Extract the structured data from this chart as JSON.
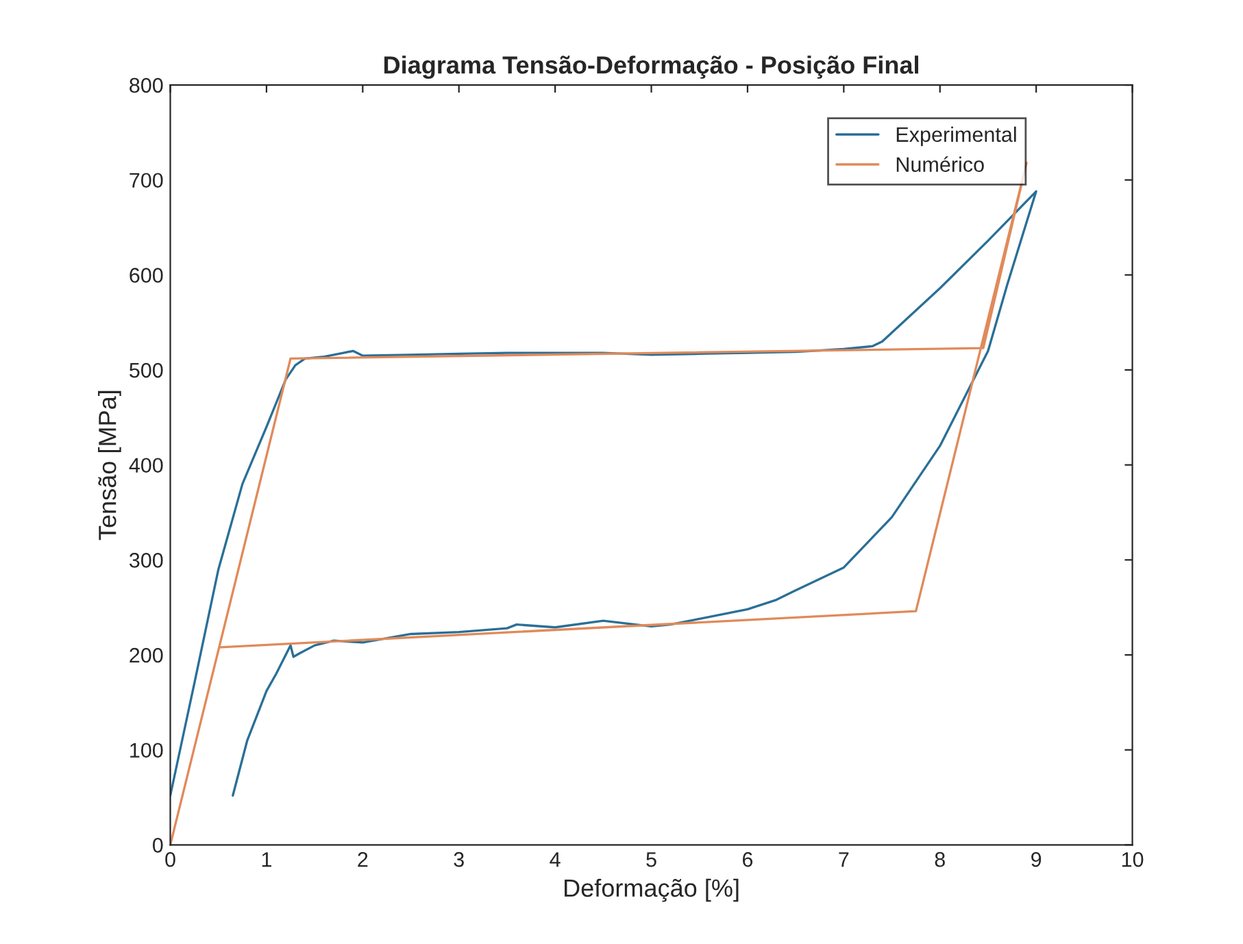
{
  "chart_data": {
    "type": "line",
    "title": "Diagrama Tensão-Deformação - Posição Final",
    "xlabel": "Deformação [%]",
    "ylabel": "Tensão [MPa]",
    "xlim": [
      0,
      10
    ],
    "ylim": [
      0,
      800
    ],
    "xticks": [
      0,
      1,
      2,
      3,
      4,
      5,
      6,
      7,
      8,
      9,
      10
    ],
    "yticks": [
      0,
      100,
      200,
      300,
      400,
      500,
      600,
      700,
      800
    ],
    "grid": false,
    "legend": "top right",
    "series": [
      {
        "name": "Experimental",
        "color": "#2a6f97",
        "x": [
          0,
          0.25,
          0.5,
          0.75,
          1.0,
          1.2,
          1.3,
          1.4,
          1.6,
          1.8,
          1.9,
          2.0,
          2.5,
          3.0,
          3.5,
          4.0,
          4.5,
          5.0,
          5.5,
          6.0,
          6.5,
          7.0,
          7.3,
          7.4,
          8.0,
          8.5,
          9.0,
          8.7,
          8.5,
          8.0,
          7.5,
          7.0,
          6.5,
          6.3,
          6.0,
          5.5,
          5.2,
          5.0,
          4.5,
          4.0,
          3.6,
          3.5,
          3.0,
          2.5,
          2.0,
          1.7,
          1.5,
          1.35,
          1.28,
          1.25,
          1.1,
          1.0,
          0.8,
          0.65
        ],
        "values": [
          52,
          170,
          290,
          380,
          440,
          490,
          505,
          512,
          514,
          518,
          520,
          515,
          516,
          517,
          518,
          518,
          518,
          516,
          517,
          518,
          519,
          522,
          525,
          530,
          586,
          636,
          688,
          590,
          520,
          420,
          345,
          292,
          268,
          258,
          248,
          238,
          232,
          230,
          236,
          229,
          232,
          228,
          224,
          222,
          213,
          215,
          210,
          202,
          198,
          210,
          180,
          162,
          110,
          52
        ]
      },
      {
        "name": "Numérico",
        "color": "#e08a5a",
        "x": [
          0,
          1.25,
          8.45,
          8.9,
          7.75,
          0.52
        ],
        "values": [
          0,
          512,
          523,
          718,
          246,
          208
        ]
      }
    ]
  }
}
